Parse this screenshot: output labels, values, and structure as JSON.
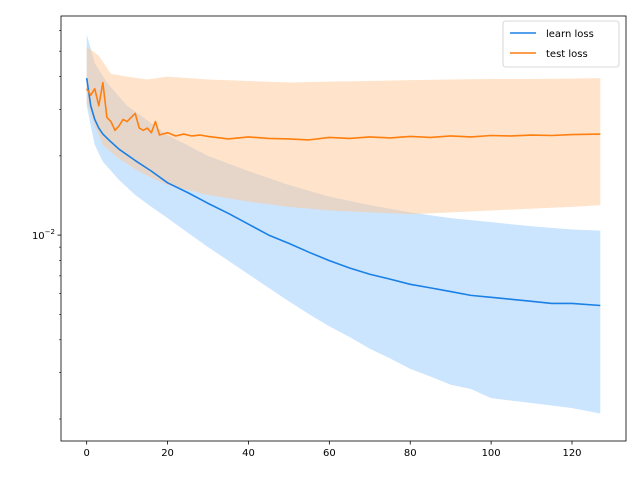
{
  "chart_data": {
    "type": "line",
    "title": "",
    "xlabel": "",
    "ylabel": "",
    "xlim": [
      -6.35,
      133.35
    ],
    "ylim": [
      0.00165,
      0.068
    ],
    "yscale": "log",
    "xticks": [
      0,
      20,
      40,
      60,
      80,
      100,
      120
    ],
    "xtick_labels": [
      "0",
      "20",
      "40",
      "60",
      "80",
      "100",
      "120"
    ],
    "ytick_label": {
      "mantissa": "10",
      "exponent": "−2",
      "value": 0.01
    },
    "grid": false,
    "legend_position": "top-right",
    "series": [
      {
        "name": "learn loss",
        "color": "#1a80e5",
        "band_color": "#8ec5ff",
        "band_opacity": 0.45,
        "points": [
          [
            0,
            0.0395
          ],
          [
            1,
            0.031
          ],
          [
            2,
            0.0275
          ],
          [
            3,
            0.0255
          ],
          [
            4,
            0.0242
          ],
          [
            6,
            0.0226
          ],
          [
            8,
            0.0212
          ],
          [
            12,
            0.0192
          ],
          [
            16,
            0.0175
          ],
          [
            20,
            0.0158
          ],
          [
            25,
            0.0145
          ],
          [
            30,
            0.0132
          ],
          [
            35,
            0.0121
          ],
          [
            40,
            0.011
          ],
          [
            45,
            0.01
          ],
          [
            50,
            0.0093
          ],
          [
            55,
            0.0086
          ],
          [
            60,
            0.008
          ],
          [
            65,
            0.0075
          ],
          [
            70,
            0.0071
          ],
          [
            75,
            0.0068
          ],
          [
            80,
            0.0065
          ],
          [
            85,
            0.0063
          ],
          [
            90,
            0.0061
          ],
          [
            95,
            0.0059
          ],
          [
            100,
            0.0058
          ],
          [
            105,
            0.0057
          ],
          [
            110,
            0.0056
          ],
          [
            115,
            0.0055
          ],
          [
            120,
            0.0055
          ],
          [
            127,
            0.0054
          ]
        ],
        "band_upper": [
          [
            0,
            0.058
          ],
          [
            2,
            0.045
          ],
          [
            5,
            0.038
          ],
          [
            10,
            0.031
          ],
          [
            20,
            0.024
          ],
          [
            30,
            0.02
          ],
          [
            40,
            0.0175
          ],
          [
            50,
            0.0155
          ],
          [
            60,
            0.014
          ],
          [
            70,
            0.013
          ],
          [
            80,
            0.0122
          ],
          [
            90,
            0.0116
          ],
          [
            100,
            0.0112
          ],
          [
            110,
            0.0108
          ],
          [
            120,
            0.0105
          ],
          [
            127,
            0.0104
          ]
        ],
        "band_lower": [
          [
            0,
            0.031
          ],
          [
            2,
            0.022
          ],
          [
            4,
            0.019
          ],
          [
            8,
            0.0162
          ],
          [
            12,
            0.0142
          ],
          [
            16,
            0.0128
          ],
          [
            20,
            0.0116
          ],
          [
            25,
            0.0102
          ],
          [
            30,
            0.009
          ],
          [
            35,
            0.008
          ],
          [
            40,
            0.0071
          ],
          [
            45,
            0.0063
          ],
          [
            50,
            0.0056
          ],
          [
            55,
            0.005
          ],
          [
            60,
            0.0045
          ],
          [
            65,
            0.0041
          ],
          [
            70,
            0.0037
          ],
          [
            75,
            0.0034
          ],
          [
            80,
            0.0031
          ],
          [
            85,
            0.0029
          ],
          [
            90,
            0.0027
          ],
          [
            95,
            0.0026
          ],
          [
            100,
            0.0024
          ],
          [
            110,
            0.0023
          ],
          [
            120,
            0.0022
          ],
          [
            127,
            0.0021
          ]
        ]
      },
      {
        "name": "test loss",
        "color": "#ff7f0e",
        "band_color": "#ffc896",
        "band_opacity": 0.5,
        "points": [
          [
            0,
            0.036
          ],
          [
            1,
            0.034
          ],
          [
            2,
            0.036
          ],
          [
            3,
            0.031
          ],
          [
            4,
            0.038
          ],
          [
            5,
            0.028
          ],
          [
            6,
            0.027
          ],
          [
            7,
            0.025
          ],
          [
            8,
            0.026
          ],
          [
            9,
            0.0275
          ],
          [
            10,
            0.027
          ],
          [
            11,
            0.028
          ],
          [
            12,
            0.029
          ],
          [
            13,
            0.0255
          ],
          [
            14,
            0.025
          ],
          [
            15,
            0.0255
          ],
          [
            16,
            0.0245
          ],
          [
            17,
            0.027
          ],
          [
            18,
            0.024
          ],
          [
            20,
            0.0245
          ],
          [
            22,
            0.0238
          ],
          [
            24,
            0.0242
          ],
          [
            26,
            0.0238
          ],
          [
            28,
            0.024
          ],
          [
            30,
            0.0237
          ],
          [
            35,
            0.0232
          ],
          [
            40,
            0.0236
          ],
          [
            45,
            0.0233
          ],
          [
            50,
            0.0232
          ],
          [
            55,
            0.023
          ],
          [
            60,
            0.0235
          ],
          [
            65,
            0.0233
          ],
          [
            70,
            0.0236
          ],
          [
            75,
            0.0234
          ],
          [
            80,
            0.0237
          ],
          [
            85,
            0.0235
          ],
          [
            90,
            0.0238
          ],
          [
            95,
            0.0236
          ],
          [
            100,
            0.0239
          ],
          [
            105,
            0.0238
          ],
          [
            110,
            0.024
          ],
          [
            115,
            0.0239
          ],
          [
            120,
            0.0241
          ],
          [
            127,
            0.0242
          ]
        ],
        "band_upper": [
          [
            0,
            0.052
          ],
          [
            3,
            0.048
          ],
          [
            6,
            0.041
          ],
          [
            10,
            0.04
          ],
          [
            15,
            0.039
          ],
          [
            20,
            0.04
          ],
          [
            30,
            0.039
          ],
          [
            40,
            0.0385
          ],
          [
            50,
            0.038
          ],
          [
            60,
            0.0383
          ],
          [
            70,
            0.0385
          ],
          [
            80,
            0.0388
          ],
          [
            90,
            0.039
          ],
          [
            100,
            0.0392
          ],
          [
            110,
            0.0392
          ],
          [
            120,
            0.0393
          ],
          [
            127,
            0.0395
          ]
        ],
        "band_lower": [
          [
            0,
            0.032
          ],
          [
            2,
            0.026
          ],
          [
            4,
            0.022
          ],
          [
            8,
            0.0195
          ],
          [
            12,
            0.0178
          ],
          [
            16,
            0.0165
          ],
          [
            20,
            0.0155
          ],
          [
            30,
            0.0142
          ],
          [
            40,
            0.0134
          ],
          [
            50,
            0.0128
          ],
          [
            60,
            0.0124
          ],
          [
            70,
            0.0122
          ],
          [
            80,
            0.012
          ],
          [
            90,
            0.0122
          ],
          [
            100,
            0.0124
          ],
          [
            110,
            0.0126
          ],
          [
            120,
            0.0128
          ],
          [
            127,
            0.013
          ]
        ]
      }
    ]
  }
}
